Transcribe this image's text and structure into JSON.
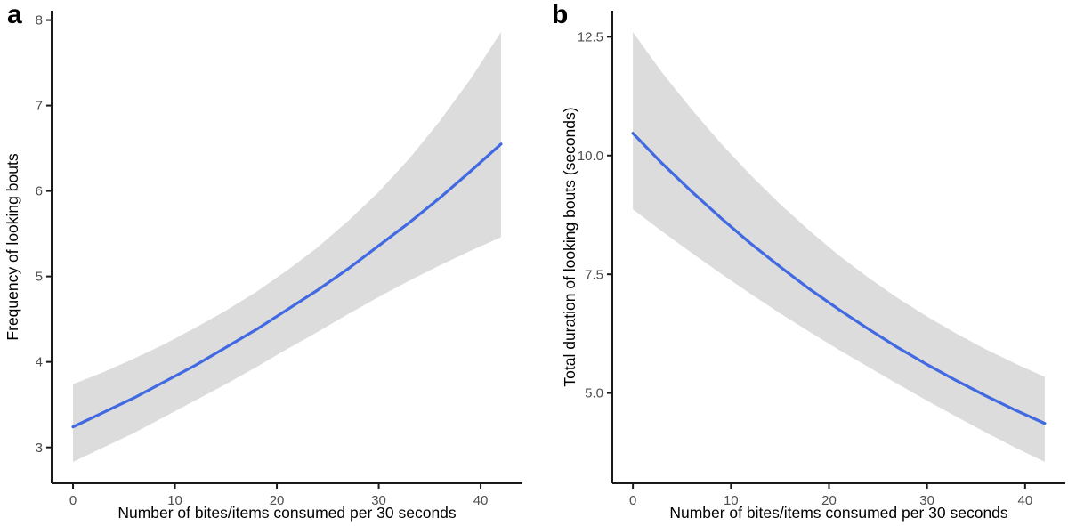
{
  "figure": {
    "background": "#ffffff",
    "panels": [
      {
        "label": "a"
      },
      {
        "label": "b"
      }
    ]
  },
  "chart_data": [
    {
      "id": "a",
      "type": "line",
      "panel_label": "a",
      "title": "",
      "xlabel": "Number of bites/items consumed per 30 seconds",
      "ylabel": "Frequency of looking bouts",
      "legend": "none",
      "grid": false,
      "xlim": [
        -2.1,
        44.1
      ],
      "ylim": [
        2.58,
        8.11
      ],
      "xticks": [
        0,
        10,
        20,
        30,
        40
      ],
      "xtick_labels": [
        "0",
        "10",
        "20",
        "30",
        "40"
      ],
      "yticks": [
        3,
        4,
        5,
        6,
        7,
        8
      ],
      "ytick_labels": [
        "3",
        "4",
        "5",
        "6",
        "7",
        "8"
      ],
      "x": [
        0,
        3,
        6,
        9,
        12,
        15,
        18,
        21,
        24,
        27,
        30,
        33,
        36,
        39,
        42
      ],
      "line": [
        3.24,
        3.41,
        3.58,
        3.77,
        3.96,
        4.17,
        4.38,
        4.61,
        4.84,
        5.09,
        5.36,
        5.63,
        5.92,
        6.23,
        6.55
      ],
      "band_upper": [
        3.74,
        3.88,
        4.04,
        4.21,
        4.4,
        4.6,
        4.82,
        5.07,
        5.34,
        5.65,
        5.99,
        6.38,
        6.82,
        7.31,
        7.86
      ],
      "band_lower": [
        2.83,
        3.0,
        3.17,
        3.36,
        3.55,
        3.74,
        3.94,
        4.15,
        4.35,
        4.56,
        4.76,
        4.95,
        5.13,
        5.3,
        5.46
      ],
      "line_color": "#4169e1",
      "band_color": "#dcdcdc",
      "axis_color": "#1a1a1a",
      "tick_label_color": "#4d4d4d",
      "axis_title_color": "#000000"
    },
    {
      "id": "b",
      "type": "line",
      "panel_label": "b",
      "title": "",
      "xlabel": "Number of bites/items consumed per 30 seconds",
      "ylabel": "Total duration of looking bouts (seconds)",
      "legend": "none",
      "grid": false,
      "xlim": [
        -2.1,
        44.1
      ],
      "ylim": [
        3.1,
        13.05
      ],
      "xticks": [
        0,
        10,
        20,
        30,
        40
      ],
      "xtick_labels": [
        "0",
        "10",
        "20",
        "30",
        "40"
      ],
      "yticks": [
        5.0,
        7.5,
        10.0,
        12.5
      ],
      "ytick_labels": [
        "5.0",
        "7.5",
        "10.0",
        "12.5"
      ],
      "x": [
        0,
        3,
        6,
        9,
        12,
        15,
        18,
        21,
        24,
        27,
        30,
        33,
        36,
        39,
        42
      ],
      "line": [
        10.47,
        9.83,
        9.24,
        8.68,
        8.15,
        7.66,
        7.19,
        6.76,
        6.35,
        5.96,
        5.6,
        5.26,
        4.94,
        4.64,
        4.36
      ],
      "band_upper": [
        12.6,
        11.74,
        10.97,
        10.25,
        9.59,
        8.98,
        8.42,
        7.9,
        7.43,
        7.0,
        6.61,
        6.25,
        5.92,
        5.62,
        5.34
      ],
      "band_lower": [
        8.87,
        8.4,
        7.95,
        7.51,
        7.09,
        6.68,
        6.29,
        5.91,
        5.55,
        5.19,
        4.84,
        4.5,
        4.17,
        3.85,
        3.55
      ],
      "line_color": "#4169e1",
      "band_color": "#dcdcdc",
      "axis_color": "#1a1a1a",
      "tick_label_color": "#4d4d4d",
      "axis_title_color": "#000000"
    }
  ]
}
